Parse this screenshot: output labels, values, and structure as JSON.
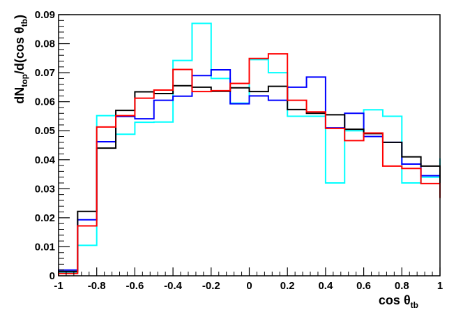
{
  "chart_data": {
    "type": "line",
    "style": "step-histogram",
    "title": "",
    "xlabel": {
      "main": "cos θ",
      "sub": "tb"
    },
    "ylabel": {
      "p1": "dN",
      "sub1": "top",
      "p2": "/d(cos θ",
      "sub2": "tb",
      "p3": ")"
    },
    "xlim": [
      -1,
      1
    ],
    "ylim": [
      0,
      0.09
    ],
    "grid": false,
    "legend": "none",
    "x_ticks": [
      -1,
      -0.8,
      -0.6,
      -0.4,
      -0.2,
      0,
      0.2,
      0.4,
      0.6,
      0.8,
      1
    ],
    "x_tick_labels": [
      "-1",
      "-0.8",
      "-0.6",
      "-0.4",
      "-0.2",
      "0",
      "0.2",
      "0.4",
      "0.6",
      "0.8",
      "1"
    ],
    "y_ticks": [
      0,
      0.01,
      0.02,
      0.03,
      0.04,
      0.05,
      0.06,
      0.07,
      0.08,
      0.09
    ],
    "y_tick_labels": [
      "0",
      "0.01",
      "0.02",
      "0.03",
      "0.04",
      "0.05",
      "0.06",
      "0.07",
      "0.08",
      "0.09"
    ],
    "bin_edges": [
      -1,
      -0.9,
      -0.8,
      -0.7,
      -0.6,
      -0.5,
      -0.4,
      -0.3,
      -0.2,
      -0.1,
      0,
      0.1,
      0.2,
      0.3,
      0.4,
      0.5,
      0.6,
      0.7,
      0.8,
      0.9,
      1
    ],
    "series": [
      {
        "color": "#00ffff",
        "values": [
          0.0012,
          0.0105,
          0.0552,
          0.0488,
          0.0529,
          0.053,
          0.0742,
          0.087,
          0.068,
          0.0595,
          0.0745,
          0.07,
          0.055,
          0.055,
          0.032,
          0.05,
          0.0572,
          0.055,
          0.032,
          0.034,
          0.0405
        ]
      },
      {
        "color": "#0000ff",
        "values": [
          0.002,
          0.0193,
          0.0462,
          0.0549,
          0.0541,
          0.0605,
          0.0619,
          0.069,
          0.071,
          0.0593,
          0.062,
          0.0605,
          0.065,
          0.0685,
          0.051,
          0.056,
          0.048,
          0.046,
          0.0385,
          0.0345,
          0.0315
        ]
      },
      {
        "color": "#000000",
        "values": [
          0.0015,
          0.0222,
          0.044,
          0.057,
          0.0634,
          0.0628,
          0.0655,
          0.065,
          0.0636,
          0.0648,
          0.0635,
          0.0653,
          0.0573,
          0.056,
          0.0555,
          0.0505,
          0.049,
          0.046,
          0.041,
          0.0378,
          0.029
        ]
      },
      {
        "color": "#ff0000",
        "values": [
          0.0008,
          0.0172,
          0.0513,
          0.0552,
          0.0612,
          0.064,
          0.0711,
          0.0635,
          0.0638,
          0.0663,
          0.0749,
          0.0765,
          0.0605,
          0.0565,
          0.0508,
          0.0466,
          0.0492,
          0.0378,
          0.037,
          0.0318,
          0.0268
        ]
      }
    ]
  }
}
